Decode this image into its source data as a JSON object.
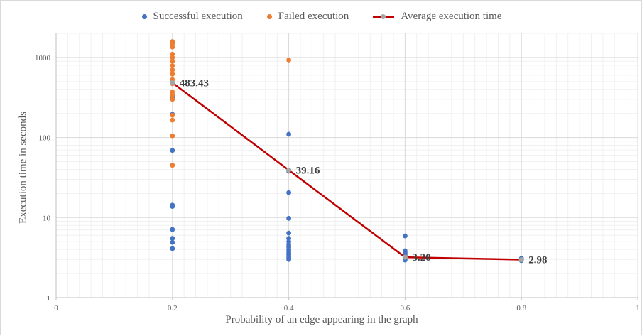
{
  "chart_data": {
    "type": "scatter",
    "title": "",
    "xlabel": "Probability of an edge appearing in the graph",
    "ylabel": "Execution time in seconds",
    "xlim": [
      0,
      1
    ],
    "ylim": [
      1,
      2000
    ],
    "yscale": "log",
    "x_ticks": [
      "0",
      "0.2",
      "0.4",
      "0.6",
      "0.8",
      "1"
    ],
    "y_ticks": [
      "1",
      "10",
      "100",
      "1000"
    ],
    "grid": true,
    "legend_position": "top",
    "series": [
      {
        "name": "Successful execution",
        "color": "#4472c4",
        "points": [
          [
            0.2,
            4.1
          ],
          [
            0.2,
            4.9
          ],
          [
            0.2,
            5.5
          ],
          [
            0.2,
            7.1
          ],
          [
            0.2,
            13.8
          ],
          [
            0.2,
            14.3
          ],
          [
            0.2,
            69
          ],
          [
            0.2,
            195
          ],
          [
            0.2,
            320
          ],
          [
            0.4,
            3.0
          ],
          [
            0.4,
            3.15
          ],
          [
            0.4,
            3.3
          ],
          [
            0.4,
            3.45
          ],
          [
            0.4,
            3.6
          ],
          [
            0.4,
            3.8
          ],
          [
            0.4,
            4.0
          ],
          [
            0.4,
            4.3
          ],
          [
            0.4,
            4.6
          ],
          [
            0.4,
            5.0
          ],
          [
            0.4,
            5.5
          ],
          [
            0.4,
            6.4
          ],
          [
            0.4,
            9.8
          ],
          [
            0.4,
            20.5
          ],
          [
            0.4,
            38
          ],
          [
            0.4,
            110
          ],
          [
            0.6,
            2.95
          ],
          [
            0.6,
            3.05
          ],
          [
            0.6,
            3.15
          ],
          [
            0.6,
            3.25
          ],
          [
            0.6,
            3.35
          ],
          [
            0.6,
            3.5
          ],
          [
            0.6,
            3.65
          ],
          [
            0.6,
            3.85
          ],
          [
            0.6,
            5.9
          ],
          [
            0.8,
            2.9
          ],
          [
            0.8,
            3.0
          ],
          [
            0.8,
            3.1
          ]
        ]
      },
      {
        "name": "Failed execution",
        "color": "#ed7d31",
        "points": [
          [
            0.2,
            45
          ],
          [
            0.2,
            105
          ],
          [
            0.2,
            165
          ],
          [
            0.2,
            190
          ],
          [
            0.2,
            300
          ],
          [
            0.2,
            340
          ],
          [
            0.2,
            370
          ],
          [
            0.2,
            470
          ],
          [
            0.2,
            530
          ],
          [
            0.2,
            620
          ],
          [
            0.2,
            700
          ],
          [
            0.2,
            790
          ],
          [
            0.2,
            900
          ],
          [
            0.2,
            1000
          ],
          [
            0.2,
            1100
          ],
          [
            0.2,
            1350
          ],
          [
            0.2,
            1500
          ],
          [
            0.2,
            1580
          ],
          [
            0.4,
            930
          ]
        ]
      },
      {
        "name": "Average execution time",
        "color": "#c00000",
        "marker_color": "#a5a5a5",
        "points": [
          [
            0.2,
            483.43
          ],
          [
            0.4,
            39.16
          ],
          [
            0.6,
            3.2
          ],
          [
            0.8,
            2.98
          ]
        ],
        "labels": [
          "483.43",
          "39.16",
          "3.20",
          "2.98"
        ]
      }
    ]
  }
}
